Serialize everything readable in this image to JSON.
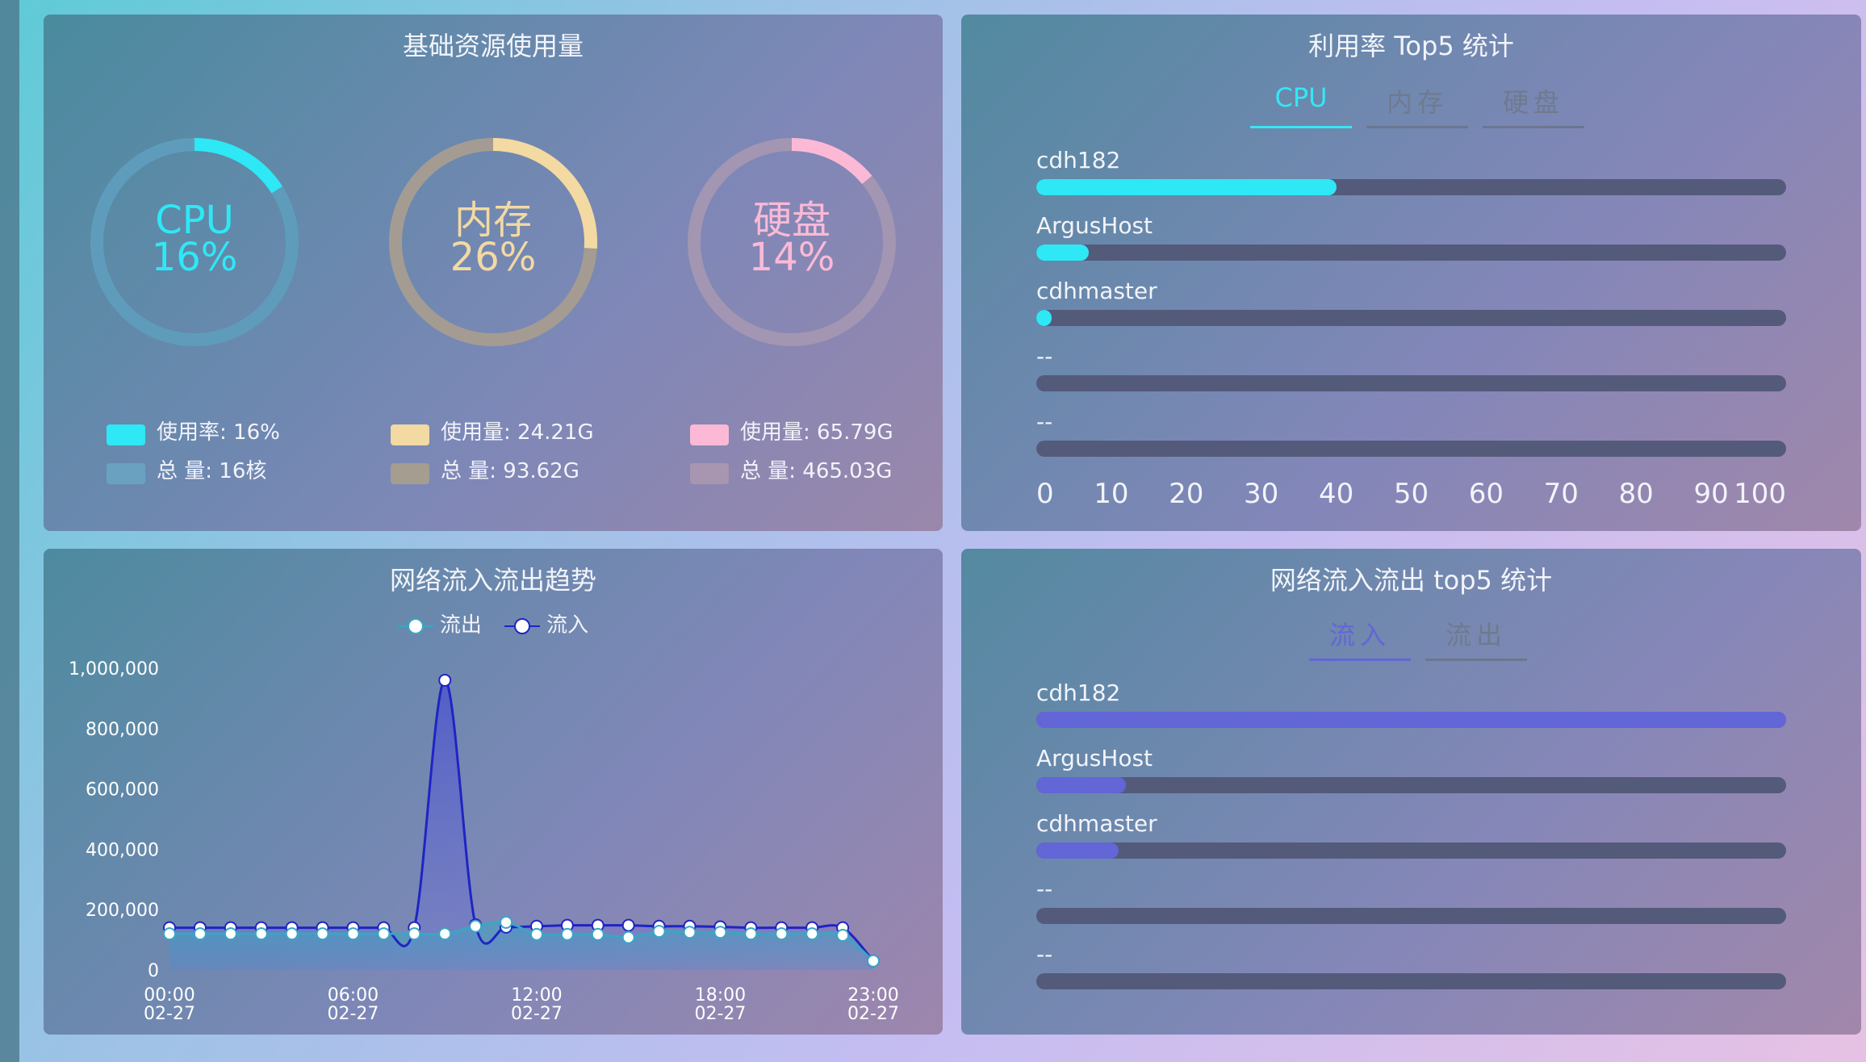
{
  "resources": {
    "title": "基础资源使用量",
    "gauges": [
      {
        "name": "CPU",
        "percent": "16%",
        "value": 16,
        "color": "#2ee8f6",
        "track": "#5f9cbc",
        "legend": [
          {
            "text": "使用率: 16%",
            "color": "#2ee8f6"
          },
          {
            "text": "总 量: 16核",
            "color": "#6aa1c0"
          }
        ]
      },
      {
        "name": "内存",
        "percent": "26%",
        "value": 26,
        "color": "#f3d9a2",
        "track": "#a49c92",
        "legend": [
          {
            "text": "使用量: 24.21G",
            "color": "#f3d9a2"
          },
          {
            "text": "总 量: 93.62G",
            "color": "#a59d90"
          }
        ]
      },
      {
        "name": "硬盘",
        "percent": "14%",
        "value": 14,
        "color": "#fbb9d6",
        "track": "#a296b2",
        "legend": [
          {
            "text": "使用量: 65.79G",
            "color": "#fbb9d6"
          },
          {
            "text": "总 量: 465.03G",
            "color": "#a896b0"
          }
        ]
      }
    ]
  },
  "top5": {
    "title": "利用率 Top5 统计",
    "tabs": [
      "CPU",
      "内存",
      "硬盘"
    ],
    "active_tab": 0,
    "bar_color": "#2ee8f6",
    "items": [
      {
        "name": "cdh182",
        "value": 40
      },
      {
        "name": "ArgusHost",
        "value": 7
      },
      {
        "name": "cdhmaster",
        "value": 2
      },
      {
        "name": "--",
        "value": 0
      },
      {
        "name": "--",
        "value": 0
      }
    ],
    "axis_ticks": [
      "0",
      "10",
      "20",
      "30",
      "40",
      "50",
      "60",
      "70",
      "80",
      "90",
      "100"
    ]
  },
  "network": {
    "title": "网络流入流出趋势",
    "legend": [
      "流出",
      "流入"
    ],
    "chart_data": {
      "type": "line",
      "y_ticks": [
        "0",
        "200,000",
        "400,000",
        "600,000",
        "800,000",
        "1,000,000"
      ],
      "ylim": [
        0,
        1000000
      ],
      "x_ticks": [
        {
          "time": "00:00",
          "date": "02-27"
        },
        {
          "time": "06:00",
          "date": "02-27"
        },
        {
          "time": "12:00",
          "date": "02-27"
        },
        {
          "time": "18:00",
          "date": "02-27"
        },
        {
          "time": "23:00",
          "date": "02-27"
        }
      ],
      "x": [
        0,
        1,
        2,
        3,
        4,
        5,
        6,
        7,
        8,
        9,
        10,
        11,
        12,
        13,
        14,
        15,
        16,
        17,
        18,
        19,
        20,
        21,
        22,
        23
      ],
      "series": [
        {
          "name": "流出",
          "color": "#3aa6c4",
          "values": [
            120000,
            120000,
            120000,
            120000,
            120000,
            120000,
            120000,
            120000,
            120000,
            120000,
            145000,
            158000,
            118000,
            118000,
            118000,
            108000,
            128000,
            125000,
            125000,
            120000,
            120000,
            120000,
            115000,
            30000
          ]
        },
        {
          "name": "流入",
          "color": "#1f24c4",
          "values": [
            140000,
            140000,
            140000,
            140000,
            140000,
            140000,
            140000,
            140000,
            140000,
            960000,
            150000,
            142000,
            145000,
            148000,
            148000,
            148000,
            145000,
            145000,
            143000,
            140000,
            140000,
            140000,
            140000,
            30000
          ]
        }
      ]
    }
  },
  "net_top5": {
    "title": "网络流入流出 top5 统计",
    "tabs": [
      "流入",
      "流出"
    ],
    "active_tab": 0,
    "bar_color": "#6266d6",
    "items": [
      {
        "name": "cdh182",
        "value": 100
      },
      {
        "name": "ArgusHost",
        "value": 12
      },
      {
        "name": "cdhmaster",
        "value": 11
      },
      {
        "name": "--",
        "value": 0
      },
      {
        "name": "--",
        "value": 0
      }
    ]
  }
}
